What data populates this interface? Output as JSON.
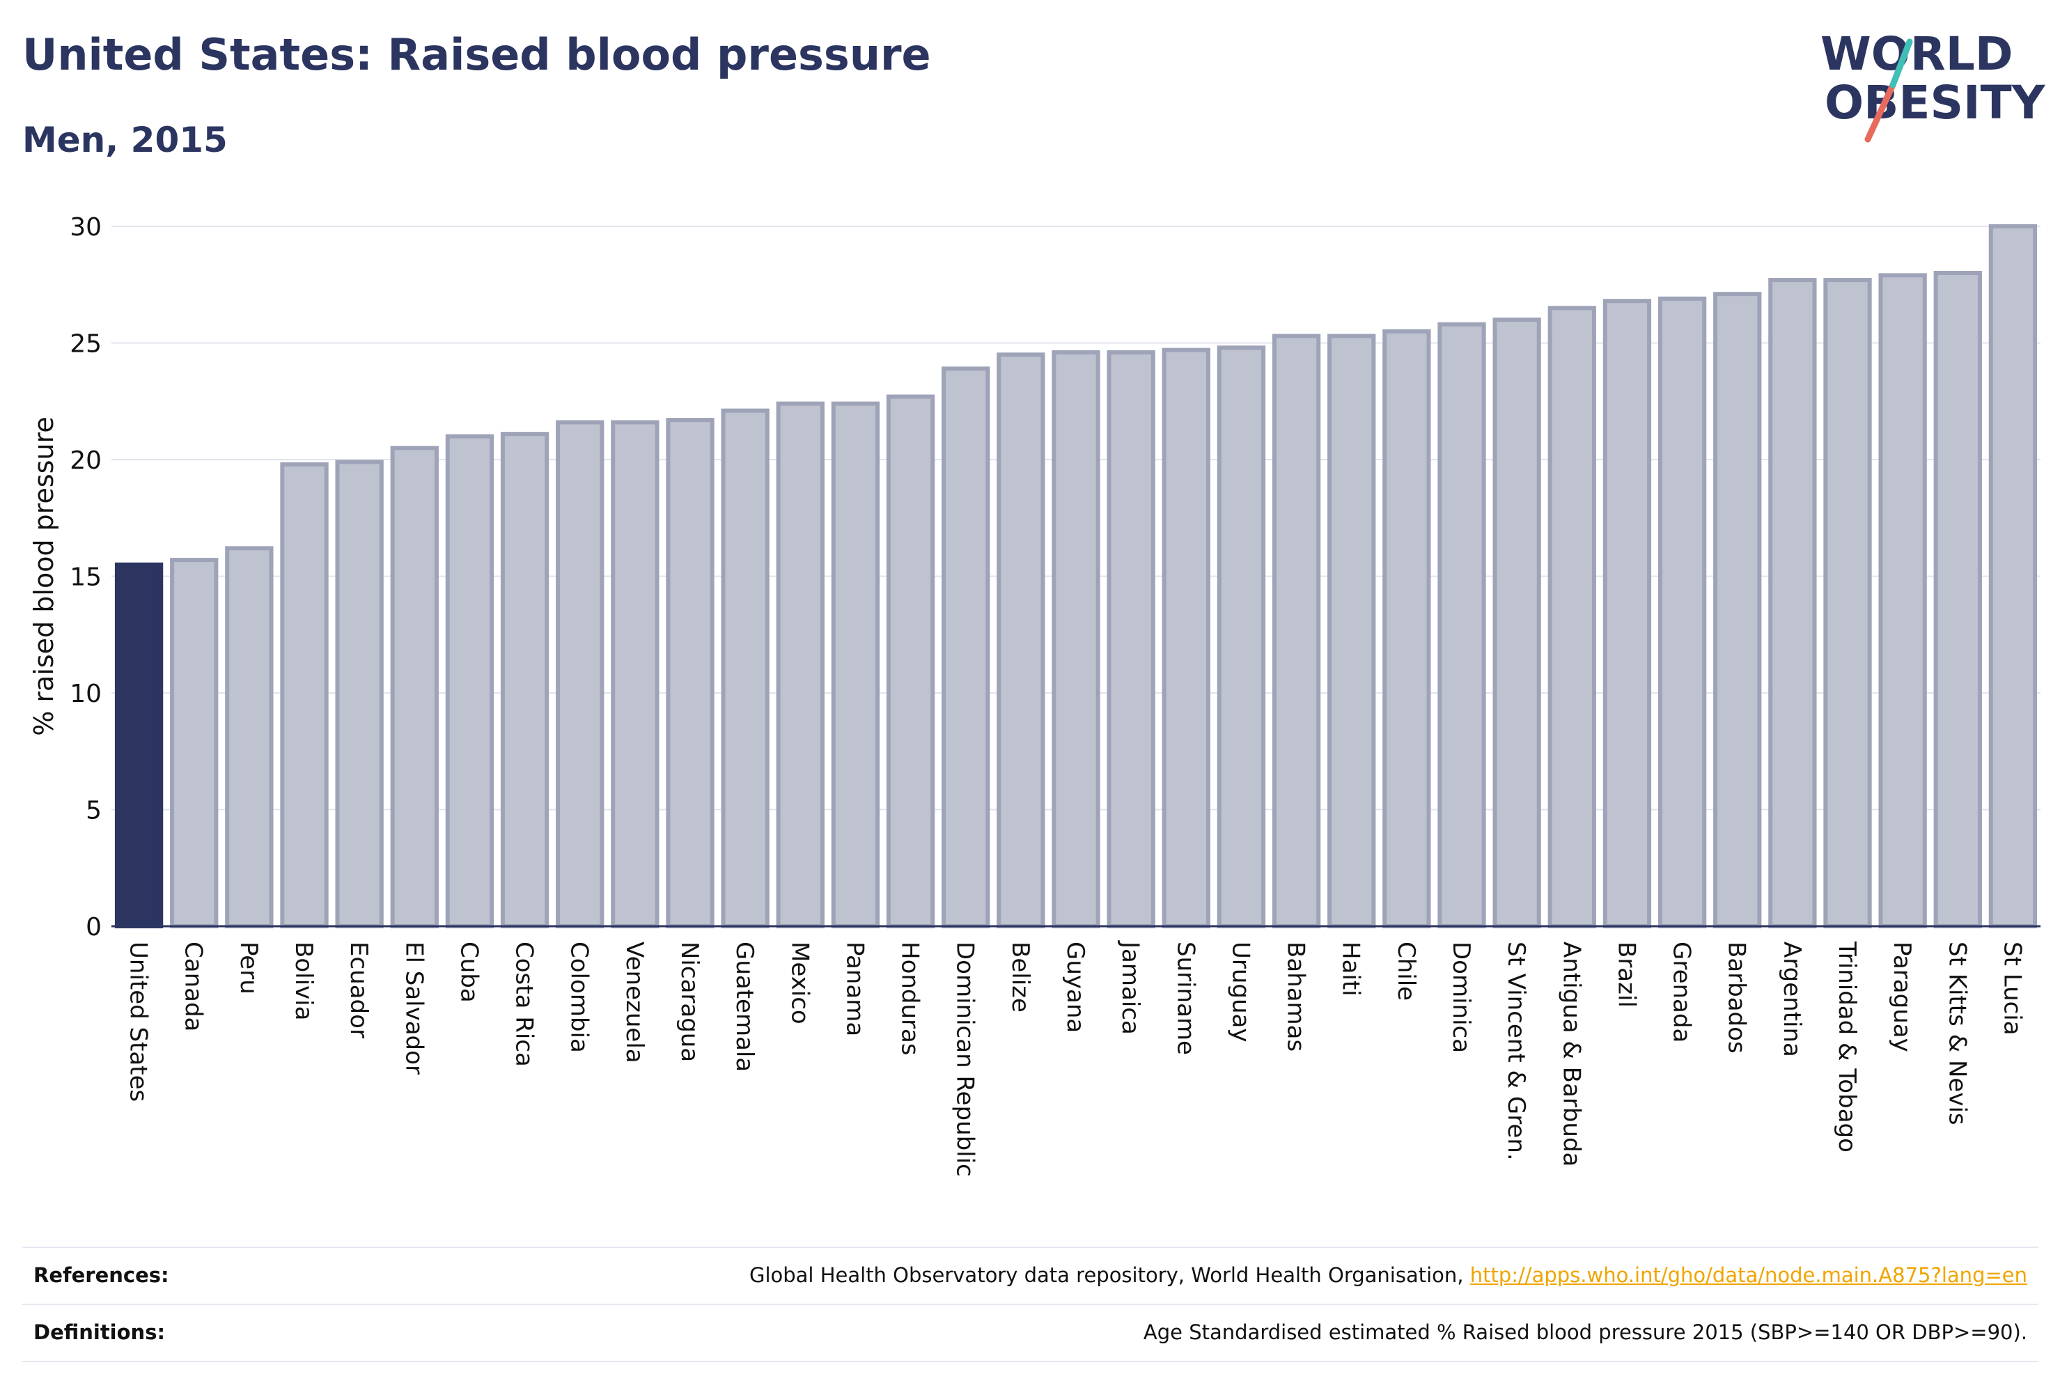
{
  "title": "United States: Raised blood pressure",
  "subtitle": "Men, 2015",
  "logo": {
    "line1": "WORLD",
    "line2": "OBESITY",
    "icon": "world-obesity-slash-logo"
  },
  "colors": {
    "highlight": "#2b3560",
    "bar_fill": "#bfc2cf",
    "bar_stroke": "#9ea3b8",
    "text": "#2b3560",
    "grid": "#e3e5ec",
    "link": "#f0a500"
  },
  "chart_data": {
    "type": "bar",
    "title": "United States: Raised blood pressure",
    "subtitle": "Men, 2015",
    "xlabel": "",
    "ylabel": "% raised blood pressure",
    "ylim": [
      0,
      30
    ],
    "yticks": [
      0,
      5,
      10,
      15,
      20,
      25,
      30
    ],
    "grid": true,
    "highlight_category": "United States",
    "categories": [
      "United States",
      "Canada",
      "Peru",
      "Bolivia",
      "Ecuador",
      "El Salvador",
      "Cuba",
      "Costa Rica",
      "Colombia",
      "Venezuela",
      "Nicaragua",
      "Guatemala",
      "Mexico",
      "Panama",
      "Honduras",
      "Dominican Republic",
      "Belize",
      "Guyana",
      "Jamaica",
      "Suriname",
      "Uruguay",
      "Bahamas",
      "Haiti",
      "Chile",
      "Dominica",
      "St Vincent & Gren.",
      "Antigua & Barbuda",
      "Brazil",
      "Grenada",
      "Barbados",
      "Argentina",
      "Trinidad & Tobago",
      "Paraguay",
      "St Kitts & Nevis",
      "St Lucia"
    ],
    "values": [
      15.5,
      15.7,
      16.2,
      19.8,
      19.9,
      20.5,
      21.0,
      21.1,
      21.6,
      21.6,
      21.7,
      22.1,
      22.4,
      22.4,
      22.7,
      23.9,
      24.5,
      24.6,
      24.6,
      24.7,
      24.8,
      25.3,
      25.3,
      25.5,
      25.8,
      26.0,
      26.5,
      26.8,
      26.9,
      27.1,
      27.7,
      27.7,
      27.9,
      28.0,
      30.0
    ]
  },
  "references": {
    "label": "References:",
    "text": "Global Health Observatory data repository, World Health Organisation, ",
    "link": "http://apps.who.int/gho/data/node.main.A875?lang=en"
  },
  "definitions": {
    "label": "Definitions:",
    "text": "Age Standardised estimated % Raised blood pressure 2015 (SBP>=140 OR DBP>=90)."
  }
}
